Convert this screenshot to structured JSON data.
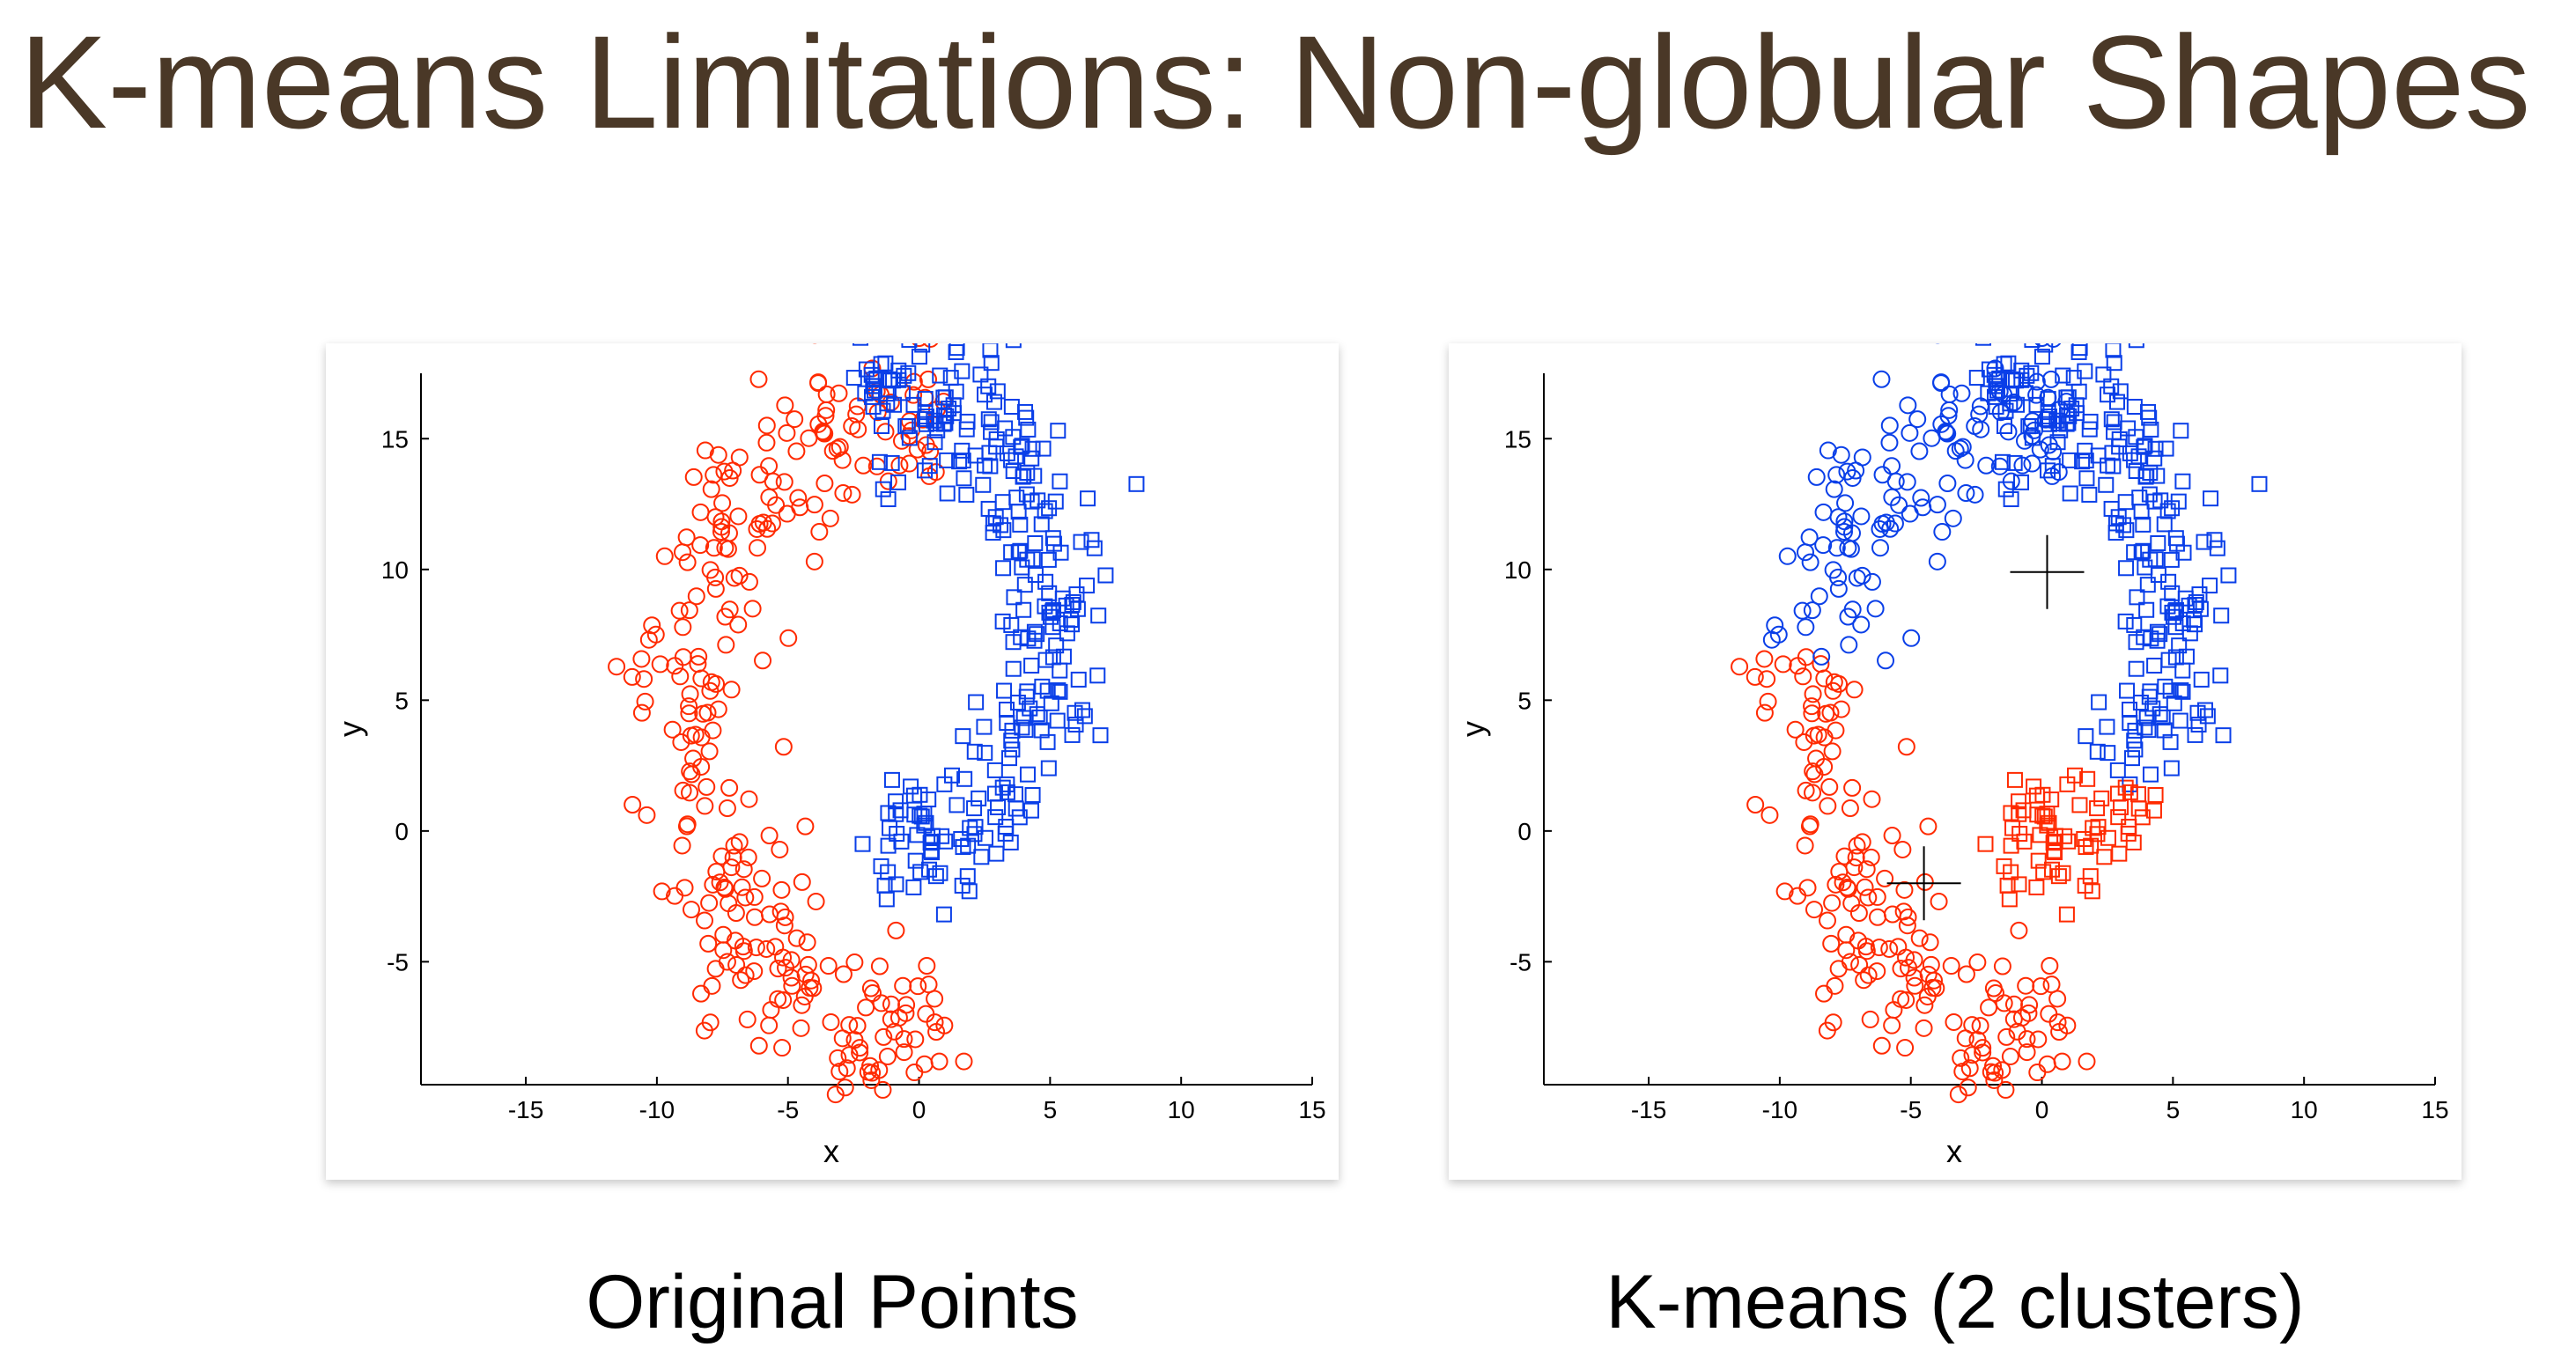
{
  "slide": {
    "title": "K-means Limitations: Non-globular Shapes",
    "captions": [
      "Original Points",
      "K-means (2 clusters)"
    ]
  },
  "colors": {
    "cluster_red": "#ff2a00",
    "cluster_blue": "#0a3fe8",
    "title_brown": "#4a3827",
    "centroid": "#000000"
  },
  "chart_data": [
    {
      "type": "scatter",
      "title": "",
      "xlabel": "x",
      "ylabel": "y",
      "xlim": [
        -19,
        15
      ],
      "ylim": [
        -9.7,
        17.5
      ],
      "xticks": [
        -15,
        -10,
        -5,
        0,
        5,
        10,
        15
      ],
      "yticks": [
        -5,
        0,
        5,
        10,
        15
      ],
      "grid": false,
      "legend": "none",
      "series": [
        {
          "marker": "circle",
          "color": "#ff2a00",
          "shape": "lower-moon",
          "points_approx": 300
        },
        {
          "marker": "square",
          "color": "#0a3fe8",
          "shape": "upper-moon",
          "points_approx": 300
        }
      ]
    },
    {
      "type": "scatter",
      "title": "",
      "xlabel": "x",
      "ylabel": "y",
      "xlim": [
        -19,
        15
      ],
      "ylim": [
        -9.7,
        17.5
      ],
      "xticks": [
        -15,
        -10,
        -5,
        0,
        5,
        10,
        15
      ],
      "yticks": [
        -5,
        0,
        5,
        10,
        15
      ],
      "grid": false,
      "legend": "none",
      "centroids": [
        [
          0.2,
          9.9
        ],
        [
          -4.5,
          -2.0
        ]
      ],
      "series": [
        {
          "marker": "circle",
          "color": "#0a3fe8",
          "region": "lower-moon, upper arm"
        },
        {
          "marker": "circle",
          "color": "#ff2a00",
          "region": "lower-moon, remainder"
        },
        {
          "marker": "square",
          "color": "#0a3fe8",
          "region": "upper-moon, main body"
        },
        {
          "marker": "square",
          "color": "#ff2a00",
          "region": "upper-moon, lower tip"
        }
      ]
    }
  ]
}
